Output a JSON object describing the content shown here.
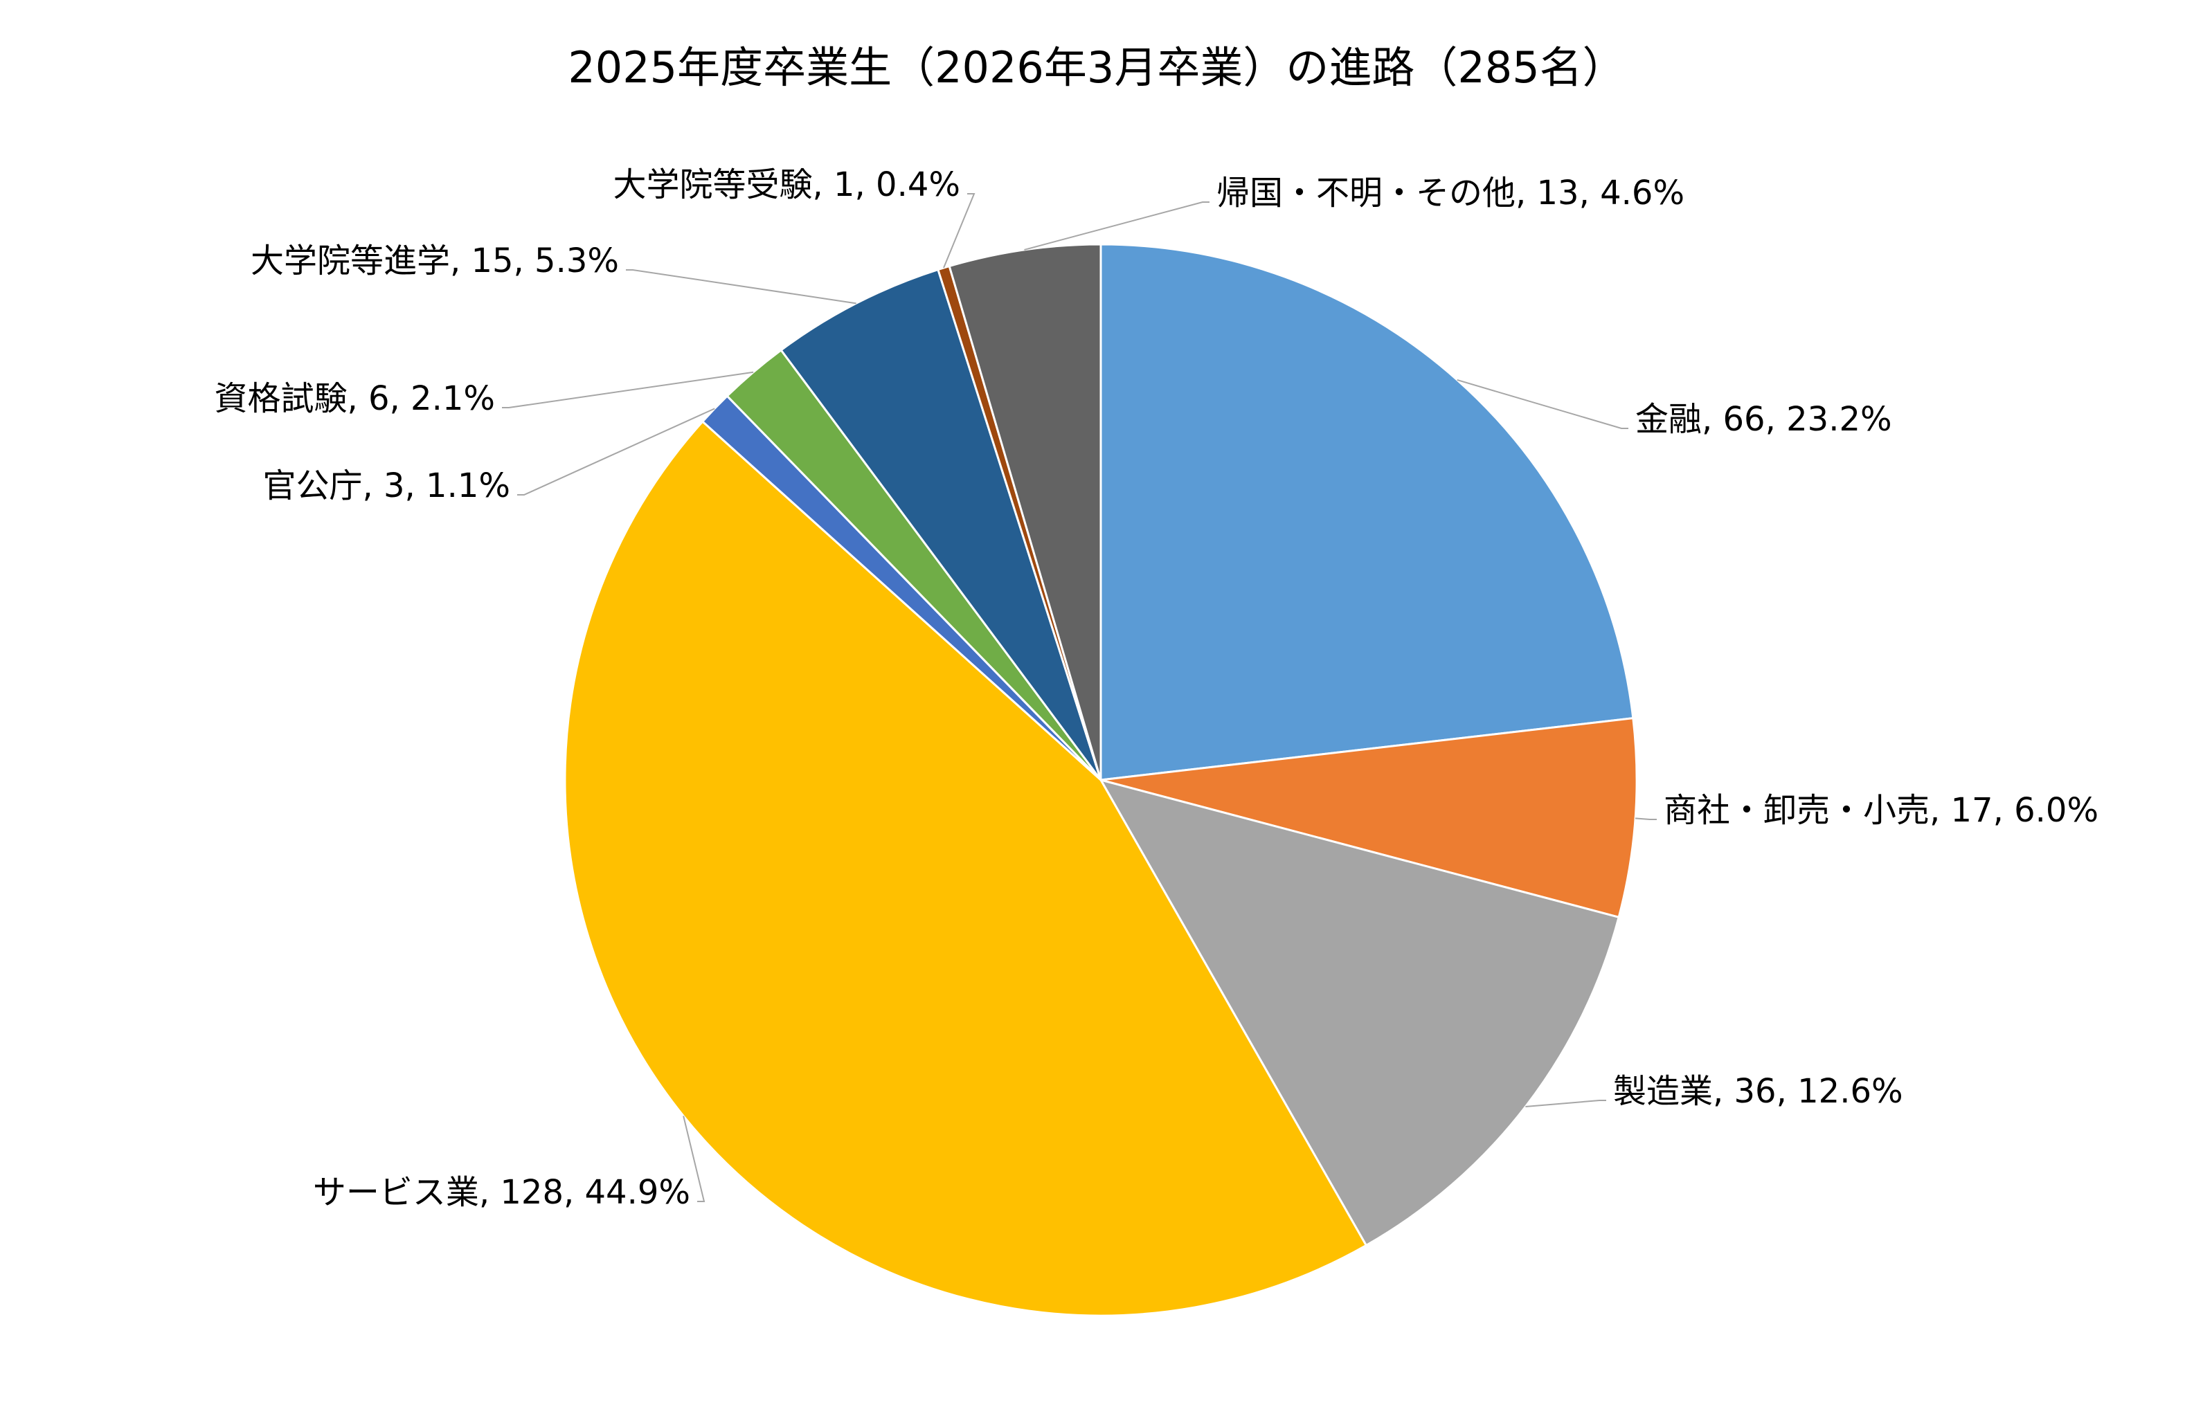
{
  "chart_data": {
    "type": "pie",
    "title": "2025年度卒業生（2026年3月卒業）の進路（285名）",
    "values": [
      66,
      17,
      36,
      128,
      3,
      6,
      15,
      1,
      13
    ],
    "value_labels": [
      "金融, 66, 23.2%",
      "商社・卸売・小売, 17, 6.0%",
      "製造業, 36, 12.6%",
      "サービス業, 128, 44.9%",
      "官公庁, 3, 1.1%",
      "資格試験, 6, 2.1%",
      "大学院等進学, 15, 5.3%",
      "大学院等受験, 1, 0.4%",
      "帰国・不明・その他, 13, 4.6%"
    ],
    "colors": [
      "#5b9bd5",
      "#ed7d31",
      "#a5a5a5",
      "#ffc000",
      "#4472c4",
      "#70ad47",
      "#255e91",
      "#9e480e",
      "#636363"
    ]
  }
}
